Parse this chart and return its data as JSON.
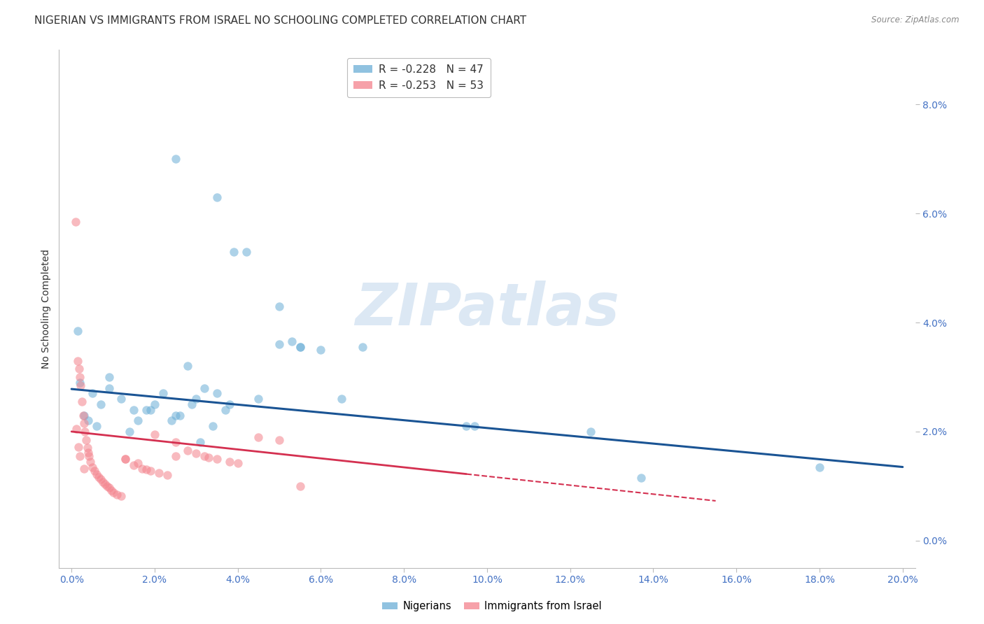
{
  "title": "NIGERIAN VS IMMIGRANTS FROM ISRAEL NO SCHOOLING COMPLETED CORRELATION CHART",
  "source": "Source: ZipAtlas.com",
  "xlabel_ticks": [
    "0.0%",
    "2.0%",
    "4.0%",
    "6.0%",
    "8.0%",
    "10.0%",
    "12.0%",
    "14.0%",
    "16.0%",
    "18.0%",
    "20.0%"
  ],
  "xlabel_vals": [
    0.0,
    2.0,
    4.0,
    6.0,
    8.0,
    10.0,
    12.0,
    14.0,
    16.0,
    18.0,
    20.0
  ],
  "ylabel_ticks": [
    "0.0%",
    "2.0%",
    "4.0%",
    "6.0%",
    "8.0%"
  ],
  "ylabel_vals": [
    0.0,
    2.0,
    4.0,
    6.0,
    8.0
  ],
  "xlim": [
    -0.3,
    20.3
  ],
  "ylim": [
    -0.5,
    9.0
  ],
  "ylabel": "No Schooling Completed",
  "legend_entries": [
    {
      "label": "R = -0.228   N = 47",
      "color": "#a8c4e0"
    },
    {
      "label": "R = -0.253   N = 53",
      "color": "#f4a0b0"
    }
  ],
  "nigerian_scatter": [
    [
      0.5,
      2.7
    ],
    [
      0.7,
      2.5
    ],
    [
      0.9,
      2.8
    ],
    [
      0.3,
      2.3
    ],
    [
      0.6,
      2.1
    ],
    [
      1.2,
      2.6
    ],
    [
      1.5,
      2.4
    ],
    [
      1.8,
      2.4
    ],
    [
      2.0,
      2.5
    ],
    [
      2.2,
      2.7
    ],
    [
      2.5,
      2.3
    ],
    [
      2.8,
      3.2
    ],
    [
      3.0,
      2.6
    ],
    [
      3.2,
      2.8
    ],
    [
      3.5,
      2.7
    ],
    [
      3.8,
      2.5
    ],
    [
      0.2,
      2.9
    ],
    [
      0.4,
      2.2
    ],
    [
      1.4,
      2.0
    ],
    [
      1.6,
      2.2
    ],
    [
      1.9,
      2.4
    ],
    [
      2.4,
      2.2
    ],
    [
      2.6,
      2.3
    ],
    [
      2.9,
      2.5
    ],
    [
      3.1,
      1.8
    ],
    [
      3.4,
      2.1
    ],
    [
      3.7,
      2.4
    ],
    [
      4.5,
      2.6
    ],
    [
      5.0,
      3.6
    ],
    [
      5.5,
      3.55
    ],
    [
      6.0,
      3.5
    ],
    [
      6.5,
      2.6
    ],
    [
      7.0,
      3.55
    ],
    [
      9.5,
      2.1
    ],
    [
      9.7,
      2.1
    ],
    [
      2.5,
      7.0
    ],
    [
      3.5,
      6.3
    ],
    [
      3.9,
      5.3
    ],
    [
      5.0,
      4.3
    ],
    [
      5.3,
      3.65
    ],
    [
      0.15,
      3.85
    ],
    [
      0.9,
      3.0
    ],
    [
      4.2,
      5.3
    ],
    [
      5.5,
      3.55
    ],
    [
      12.5,
      2.0
    ],
    [
      18.0,
      1.35
    ],
    [
      13.7,
      1.15
    ]
  ],
  "israel_scatter": [
    [
      0.1,
      5.85
    ],
    [
      0.15,
      3.3
    ],
    [
      0.18,
      3.15
    ],
    [
      0.2,
      3.0
    ],
    [
      0.22,
      2.85
    ],
    [
      0.25,
      2.55
    ],
    [
      0.28,
      2.3
    ],
    [
      0.3,
      2.15
    ],
    [
      0.32,
      2.0
    ],
    [
      0.35,
      1.85
    ],
    [
      0.38,
      1.7
    ],
    [
      0.4,
      1.62
    ],
    [
      0.42,
      1.55
    ],
    [
      0.45,
      1.45
    ],
    [
      0.5,
      1.35
    ],
    [
      0.55,
      1.28
    ],
    [
      0.6,
      1.22
    ],
    [
      0.65,
      1.17
    ],
    [
      0.7,
      1.12
    ],
    [
      0.75,
      1.08
    ],
    [
      0.8,
      1.04
    ],
    [
      0.85,
      1.0
    ],
    [
      0.9,
      0.97
    ],
    [
      0.95,
      0.92
    ],
    [
      1.0,
      0.88
    ],
    [
      1.1,
      0.85
    ],
    [
      1.2,
      0.82
    ],
    [
      1.3,
      1.5
    ],
    [
      1.5,
      1.38
    ],
    [
      1.7,
      1.32
    ],
    [
      1.9,
      1.28
    ],
    [
      2.1,
      1.24
    ],
    [
      2.3,
      1.2
    ],
    [
      2.5,
      1.8
    ],
    [
      2.8,
      1.65
    ],
    [
      3.0,
      1.6
    ],
    [
      3.2,
      1.55
    ],
    [
      3.5,
      1.5
    ],
    [
      3.8,
      1.45
    ],
    [
      4.0,
      1.42
    ],
    [
      1.3,
      1.5
    ],
    [
      1.6,
      1.42
    ],
    [
      2.0,
      1.95
    ],
    [
      2.5,
      1.55
    ],
    [
      3.3,
      1.52
    ],
    [
      4.5,
      1.9
    ],
    [
      5.0,
      1.85
    ],
    [
      5.5,
      1.0
    ],
    [
      0.12,
      2.05
    ],
    [
      0.16,
      1.72
    ],
    [
      0.2,
      1.55
    ],
    [
      0.3,
      1.32
    ],
    [
      1.8,
      1.3
    ]
  ],
  "nigerian_color": "#6baed6",
  "israel_color": "#f4828c",
  "nigerian_line_color": "#1a5494",
  "israel_line_color": "#d43050",
  "background_color": "#ffffff",
  "grid_color": "#cccccc",
  "axis_color": "#bbbbbb",
  "title_color": "#333333",
  "source_color": "#888888",
  "tick_color": "#4472c4",
  "watermark_text": "ZIPatlas",
  "watermark_color": "#dce8f4",
  "scatter_size": 80,
  "scatter_alpha": 0.55,
  "title_fontsize": 11,
  "axis_label_fontsize": 10,
  "tick_fontsize": 10
}
